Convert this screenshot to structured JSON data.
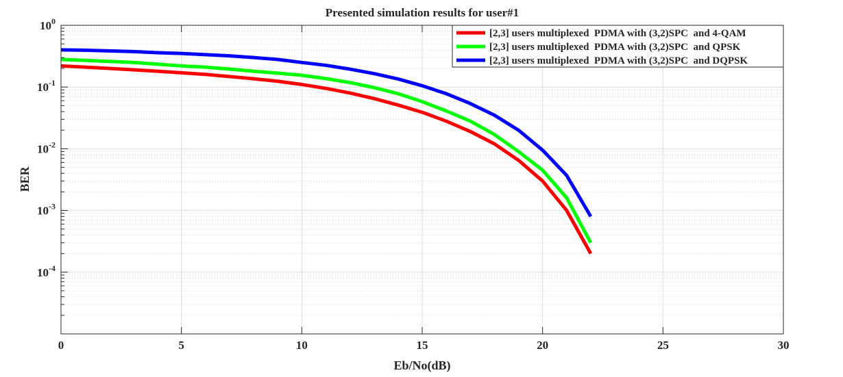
{
  "chart_data": {
    "type": "line",
    "title": "Presented simulation results for user#1",
    "xlabel": "Eb/No(dB)",
    "ylabel": "BER",
    "xlim": [
      0,
      30
    ],
    "ylim": [
      1e-05,
      1
    ],
    "yscale": "log",
    "grid": true,
    "legend_position": "top-right",
    "x_ticks": [
      "0",
      "5",
      "10",
      "15",
      "20",
      "25",
      "30"
    ],
    "y_ticks": [
      {
        "base": "10",
        "exp": "0"
      },
      {
        "base": "10",
        "exp": "-1"
      },
      {
        "base": "10",
        "exp": "-2"
      },
      {
        "base": "10",
        "exp": "-3"
      },
      {
        "base": "10",
        "exp": "-4"
      }
    ],
    "x": [
      0,
      1,
      2,
      3,
      4,
      5,
      6,
      7,
      8,
      9,
      10,
      11,
      12,
      13,
      14,
      15,
      16,
      17,
      18,
      19,
      20,
      21,
      22
    ],
    "series": [
      {
        "name": "[2,3] users multiplexed  PDMA with (3,2)SPC  and 4-QAM",
        "color": "#ff0000",
        "values": [
          0.22,
          0.21,
          0.2,
          0.19,
          0.18,
          0.17,
          0.16,
          0.148,
          0.136,
          0.124,
          0.11,
          0.095,
          0.08,
          0.065,
          0.051,
          0.039,
          0.028,
          0.019,
          0.012,
          0.0065,
          0.003,
          0.001,
          0.0002
        ]
      },
      {
        "name": "[2,3] users multiplexed  PDMA with (3,2)SPC  and QPSK",
        "color": "#00ff00",
        "values": [
          0.28,
          0.27,
          0.26,
          0.25,
          0.235,
          0.22,
          0.21,
          0.195,
          0.18,
          0.168,
          0.155,
          0.137,
          0.118,
          0.098,
          0.078,
          0.058,
          0.041,
          0.028,
          0.017,
          0.009,
          0.0045,
          0.0016,
          0.0003
        ]
      },
      {
        "name": "[2,3] users multiplexed  PDMA with (3,2)SPC  and DQPSK",
        "color": "#0000ff",
        "values": [
          0.4,
          0.395,
          0.385,
          0.375,
          0.36,
          0.35,
          0.335,
          0.32,
          0.3,
          0.28,
          0.25,
          0.225,
          0.195,
          0.165,
          0.135,
          0.105,
          0.078,
          0.054,
          0.035,
          0.02,
          0.0095,
          0.0037,
          0.0008
        ]
      }
    ]
  }
}
